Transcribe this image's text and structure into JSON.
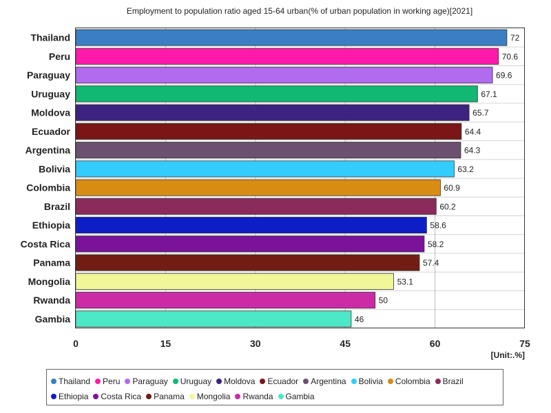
{
  "chart_data": {
    "type": "bar",
    "orientation": "horizontal",
    "title": "Employment to population ratio aged 15-64 urban(% of urban population in working age)[2021]",
    "unit": "[Unit:.%]",
    "xlim": [
      0,
      75
    ],
    "ticks": [
      0,
      15,
      30,
      45,
      60,
      75
    ],
    "grid": true,
    "legend_position": "bottom",
    "bars": [
      {
        "name": "Thailand",
        "value": 72,
        "label": "72",
        "color": "#3a7fc4"
      },
      {
        "name": "Peru",
        "value": 70.6,
        "label": "70.6",
        "color": "#ff1aab"
      },
      {
        "name": "Paraguay",
        "value": 69.6,
        "label": "69.6",
        "color": "#b06bef"
      },
      {
        "name": "Uruguay",
        "value": 67.1,
        "label": "67.1",
        "color": "#10b873"
      },
      {
        "name": "Moldova",
        "value": 65.7,
        "label": "65.7",
        "color": "#3d237f"
      },
      {
        "name": "Ecuador",
        "value": 64.4,
        "label": "64.4",
        "color": "#7a1616"
      },
      {
        "name": "Argentina",
        "value": 64.3,
        "label": "64.3",
        "color": "#6b5070"
      },
      {
        "name": "Bolivia",
        "value": 63.2,
        "label": "63.2",
        "color": "#33ccff"
      },
      {
        "name": "Colombia",
        "value": 60.9,
        "label": "60.9",
        "color": "#d98c14"
      },
      {
        "name": "Brazil",
        "value": 60.2,
        "label": "60.2",
        "color": "#8b2b5c"
      },
      {
        "name": "Ethiopia",
        "value": 58.6,
        "label": "58.6",
        "color": "#0e1ec7"
      },
      {
        "name": "Costa Rica",
        "value": 58.2,
        "label": "58.2",
        "color": "#7a139a"
      },
      {
        "name": "Panama",
        "value": 57.4,
        "label": "57.4",
        "color": "#711d14"
      },
      {
        "name": "Mongolia",
        "value": 53.1,
        "label": "53.1",
        "color": "#f1f799"
      },
      {
        "name": "Rwanda",
        "value": 50,
        "label": "50",
        "color": "#cc2ba6"
      },
      {
        "name": "Gambia",
        "value": 46,
        "label": "46",
        "color": "#4de8c7"
      }
    ]
  }
}
